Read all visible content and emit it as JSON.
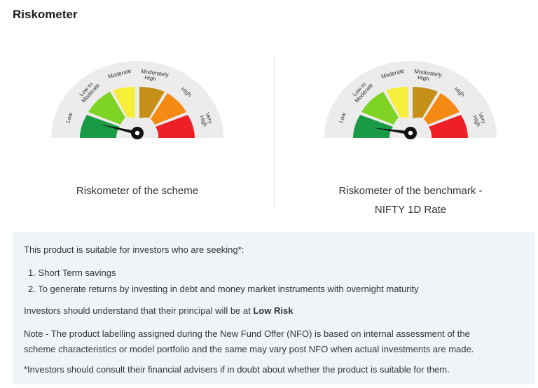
{
  "heading": "Riskometer",
  "gauges": [
    {
      "caption_line1": "Riskometer of the scheme",
      "caption_line2": "",
      "level": "Low",
      "needle_percent": 0.08
    },
    {
      "caption_line1": "Riskometer of the benchmark -",
      "caption_line2": "NIFTY 1D Rate",
      "level": "Low",
      "needle_percent": 0.05
    }
  ],
  "risk_labels": {
    "low": "Low",
    "low_to_moderate_1": "Low to",
    "low_to_moderate_2": "Moderate",
    "moderate": "Moderate",
    "moderately_high_1": "Moderately",
    "moderately_high_2": "High",
    "high": "High",
    "very_high_1": "Very",
    "very_high_2": "High"
  },
  "colors": {
    "low": "#1a9a45",
    "low_to_moderate": "#7fd322",
    "moderate": "#f6ee3a",
    "moderately_high": "#c58f18",
    "high": "#f48a14",
    "very_high": "#ee1f26",
    "outer_ring": "#ececec",
    "needle": "#111111",
    "info_bg": "#f1f4f7"
  },
  "info": {
    "intro": "This product is suitable for investors who are seeking*:",
    "items": [
      "1. Short Term savings",
      "2. To generate returns by investing in debt and money market instruments with overnight maturity"
    ],
    "risk_prefix": "Investors should understand that their principal will be at ",
    "risk_level": "Low Risk",
    "note_line1": "Note - The product labelling assigned during the New Fund Offer (NFO) is based on internal assessment of the",
    "note_line2": "scheme characteristics or model portfolio and the same may vary post NFO when actual investments are made.",
    "advice": "*Investors should consult their financial advisers if in doubt about whether the product is suitable for them."
  }
}
